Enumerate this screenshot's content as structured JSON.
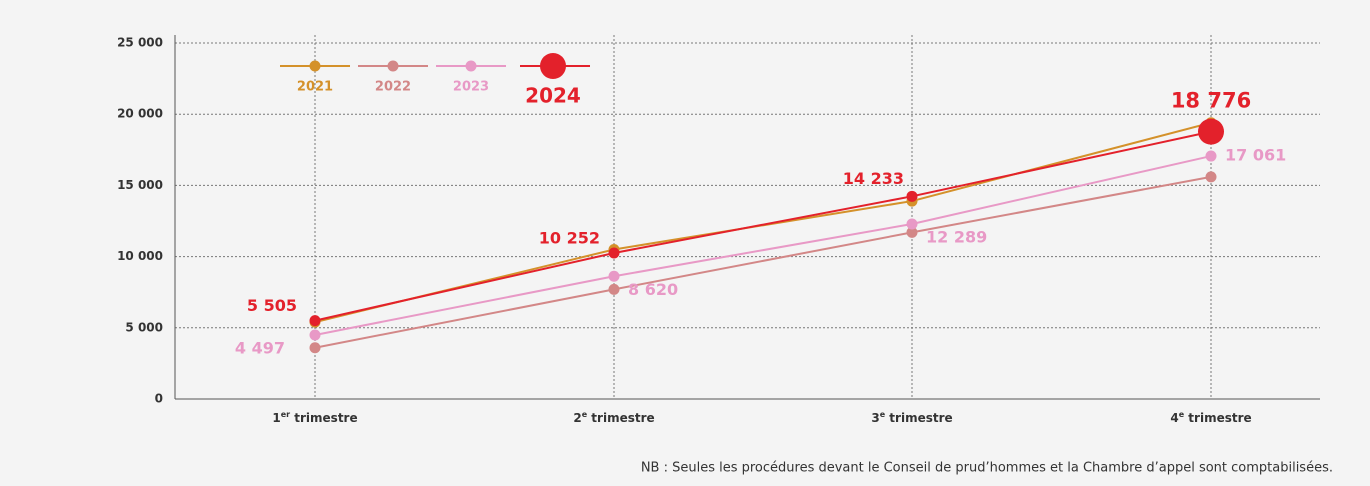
{
  "chart_data": {
    "type": "line",
    "categories": [
      "1er trimestre",
      "2e trimestre",
      "3e trimestre",
      "4e trimestre"
    ],
    "series": [
      {
        "name": "2021",
        "color": "#d4912a",
        "values": [
          5400,
          10500,
          13900,
          19400
        ]
      },
      {
        "name": "2022",
        "color": "#d38787",
        "values": [
          3600,
          7700,
          11700,
          15600
        ]
      },
      {
        "name": "2023",
        "color": "#e899c6",
        "values": [
          4497,
          8620,
          12289,
          17061
        ],
        "value_labels": [
          "4 497",
          "8 620",
          "12 289",
          "17 061"
        ]
      },
      {
        "name": "2024",
        "color": "#e3212b",
        "values": [
          5505,
          10252,
          14233,
          18776
        ],
        "value_labels": [
          "5 505",
          "10 252",
          "14 233",
          "18 776"
        ]
      }
    ],
    "ylim": [
      0,
      25000
    ],
    "yticks": [
      0,
      {
        "value": 5000,
        "label": "5 000"
      },
      {
        "value": 10000,
        "label": "10 000"
      },
      {
        "value": 15000,
        "label": "15 000"
      },
      {
        "value": 20000,
        "label": "20 000"
      },
      {
        "value": 25000,
        "label": "25 000"
      }
    ],
    "grid": true,
    "note": "NB : Seules les procédures devant le Conseil de prud’hommes et la Chambre d’appel sont comptabilisées."
  }
}
